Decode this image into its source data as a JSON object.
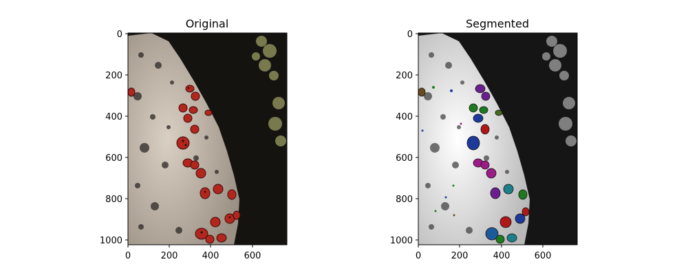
{
  "figure": {
    "panels": [
      {
        "title": "Original",
        "x_ticks": [
          "0",
          "200",
          "400",
          "600"
        ],
        "y_ticks": [
          "0",
          "200",
          "400",
          "600",
          "800",
          "1000"
        ]
      },
      {
        "title": "Segmented",
        "x_ticks": [
          "0",
          "200",
          "400",
          "600"
        ],
        "y_ticks": [
          "0",
          "200",
          "400",
          "600",
          "800",
          "1000"
        ]
      }
    ]
  },
  "colors": {
    "rock_original": "#c8bdb0",
    "background_dark": "#15130f",
    "ladybug_red": "#b3261e",
    "rock_segmented": "#e8e8e8",
    "seg_purple": "#6b1f8f",
    "seg_magenta": "#9c1c86",
    "seg_green": "#1f7a1f",
    "seg_blue": "#1d3a9a",
    "seg_cyan": "#1c7f8a",
    "seg_red": "#b01818"
  }
}
